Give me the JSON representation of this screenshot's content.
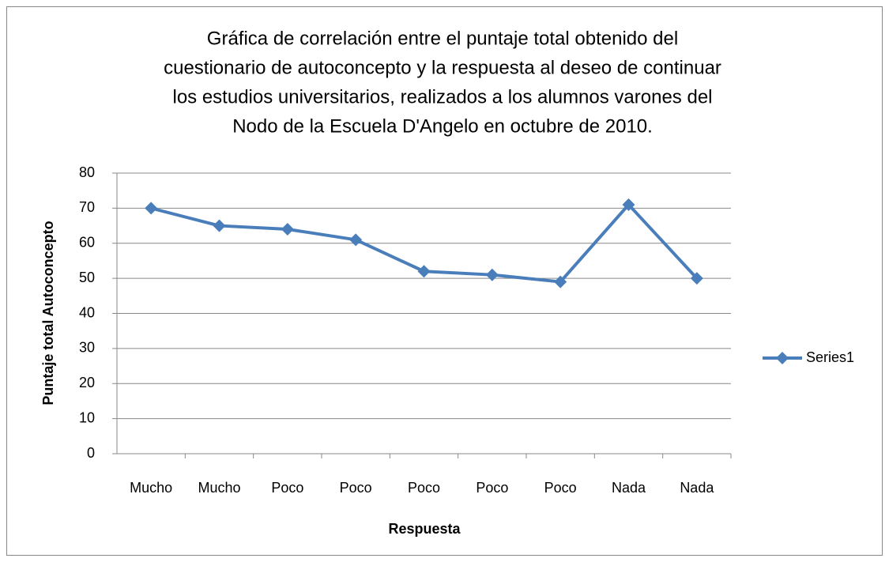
{
  "chart_data": {
    "type": "line",
    "title": [
      "Gráfica de correlación entre el puntaje total obtenido del",
      "cuestionario de autoconcepto y la respuesta al deseo de continuar",
      "los estudios universitarios, realizados a los alumnos varones del",
      "Nodo de la Escuela D'Angelo en octubre de 2010."
    ],
    "x_label": "Respuesta",
    "y_label": "Puntaje total Autoconcepto",
    "categories": [
      "Mucho",
      "Mucho",
      "Poco",
      "Poco",
      "Poco",
      "Poco",
      "Poco",
      "Nada",
      "Nada"
    ],
    "series": [
      {
        "name": "Series1",
        "color": "#4a7ebb",
        "values": [
          70,
          65,
          64,
          61,
          52,
          51,
          49,
          71,
          50
        ]
      }
    ],
    "ylim": [
      0,
      80
    ],
    "yticks": [
      0,
      10,
      20,
      30,
      40,
      50,
      60,
      70,
      80
    ],
    "grid": true,
    "legend": "right"
  }
}
